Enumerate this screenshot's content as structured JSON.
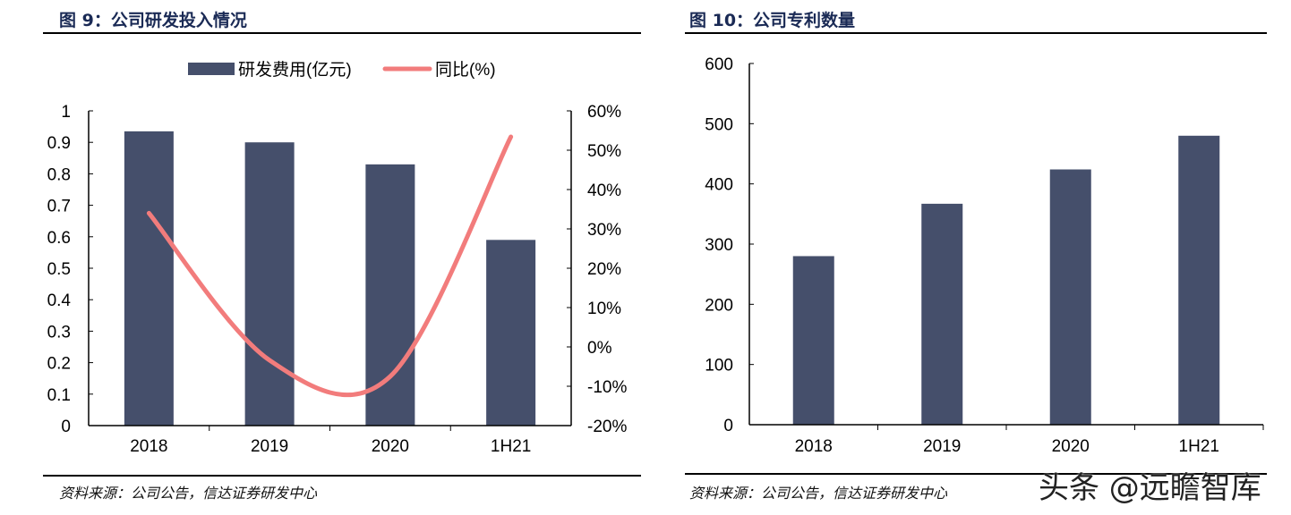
{
  "left": {
    "title": "图 9：公司研发投入情况",
    "source": "资料来源：公司公告，信达证券研发中心"
  },
  "right": {
    "title": "图 10：公司专利数量",
    "source": "资料来源：公司公告，信达证券研发中心"
  },
  "watermark": "头条 @远瞻智库",
  "chart_data": [
    {
      "type": "bar+line",
      "categories": [
        "2018",
        "2019",
        "2020",
        "1H21"
      ],
      "series": [
        {
          "name": "研发费用(亿元)",
          "type": "bar",
          "axis": "left",
          "color": "#454f6b",
          "values": [
            0.935,
            0.9,
            0.83,
            0.59
          ]
        },
        {
          "name": "同比(%)",
          "type": "line",
          "axis": "right",
          "color": "#f27c7c",
          "values": [
            34,
            -3.4,
            -7.5,
            53.4
          ]
        }
      ],
      "ylim": [
        0,
        1
      ],
      "yticks": [
        "0",
        "0.1",
        "0.2",
        "0.3",
        "0.4",
        "0.5",
        "0.6",
        "0.7",
        "0.8",
        "0.9",
        "1"
      ],
      "y2lim": [
        -20,
        60
      ],
      "y2ticks": [
        "-20%",
        "-10%",
        "0%",
        "10%",
        "20%",
        "30%",
        "40%",
        "50%",
        "60%"
      ],
      "legend": "top",
      "grid": false
    },
    {
      "type": "bar",
      "categories": [
        "2018",
        "2019",
        "2020",
        "1H21"
      ],
      "values": [
        280,
        367,
        424,
        480
      ],
      "color": "#454f6b",
      "ylim": [
        0,
        600
      ],
      "yticks": [
        "0",
        "100",
        "200",
        "300",
        "400",
        "500",
        "600"
      ],
      "grid": false
    }
  ]
}
